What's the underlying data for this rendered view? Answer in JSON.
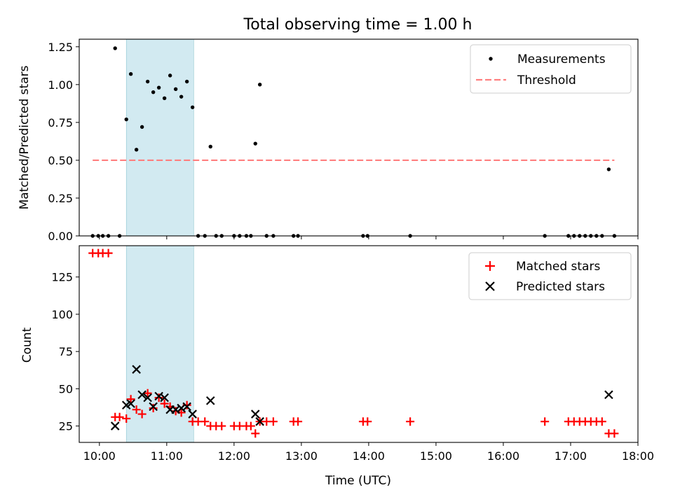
{
  "chart_data": [
    {
      "type": "scatter",
      "title": "Total observing time = 1.00 h",
      "ylabel": "Matched/Predicted stars",
      "xlabel": "",
      "xlim": [
        "09:42",
        "18:00"
      ],
      "ylim": [
        0,
        1.3
      ],
      "yticks": [
        "0.00",
        "0.25",
        "0.50",
        "0.75",
        "1.00",
        "1.25"
      ],
      "highlight_span": [
        "10:24",
        "11:24"
      ],
      "legend_position": "upper right",
      "series": [
        {
          "name": "Measurements",
          "color": "#000000",
          "marker": "dot",
          "points": [
            [
              "09:54",
              0
            ],
            [
              "09:59",
              0
            ],
            [
              "10:03",
              0
            ],
            [
              "10:08",
              0
            ],
            [
              "10:14",
              1.24
            ],
            [
              "10:18",
              0
            ],
            [
              "10:24",
              0.77
            ],
            [
              "10:28",
              1.07
            ],
            [
              "10:33",
              0.57
            ],
            [
              "10:38",
              0.72
            ],
            [
              "10:43",
              1.02
            ],
            [
              "10:48",
              0.95
            ],
            [
              "10:53",
              0.98
            ],
            [
              "10:58",
              0.91
            ],
            [
              "11:03",
              1.06
            ],
            [
              "11:08",
              0.97
            ],
            [
              "11:13",
              0.92
            ],
            [
              "11:18",
              1.02
            ],
            [
              "11:23",
              0.85
            ],
            [
              "11:28",
              0
            ],
            [
              "11:34",
              0
            ],
            [
              "11:39",
              0.59
            ],
            [
              "11:44",
              0
            ],
            [
              "11:49",
              0
            ],
            [
              "12:00",
              0
            ],
            [
              "12:05",
              0
            ],
            [
              "12:11",
              0
            ],
            [
              "12:15",
              0
            ],
            [
              "12:19",
              0.61
            ],
            [
              "12:23",
              1.0
            ],
            [
              "12:29",
              0
            ],
            [
              "12:35",
              0
            ],
            [
              "12:53",
              0
            ],
            [
              "12:57",
              0
            ],
            [
              "13:55",
              0
            ],
            [
              "13:59",
              0
            ],
            [
              "14:37",
              0
            ],
            [
              "16:37",
              0
            ],
            [
              "16:58",
              0
            ],
            [
              "17:03",
              0
            ],
            [
              "17:08",
              0
            ],
            [
              "17:13",
              0
            ],
            [
              "17:18",
              0
            ],
            [
              "17:23",
              0
            ],
            [
              "17:28",
              0
            ],
            [
              "17:34",
              0.44
            ],
            [
              "17:39",
              0
            ]
          ]
        },
        {
          "name": "Threshold",
          "color": "#ff7f7f",
          "line": "dashed",
          "points": [
            [
              "09:54",
              0.5
            ],
            [
              "17:39",
              0.5
            ]
          ]
        }
      ]
    },
    {
      "type": "scatter",
      "title": "",
      "xlabel": "Time (UTC)",
      "ylabel": "Count",
      "xlim": [
        "09:42",
        "18:00"
      ],
      "ylim": [
        14,
        146
      ],
      "xticks": [
        "10:00",
        "11:00",
        "12:00",
        "13:00",
        "14:00",
        "15:00",
        "16:00",
        "17:00",
        "18:00"
      ],
      "yticks": [
        "25",
        "50",
        "75",
        "100",
        "125"
      ],
      "highlight_span": [
        "10:24",
        "11:24"
      ],
      "legend_position": "upper right",
      "series": [
        {
          "name": "Matched stars",
          "color": "#ff0000",
          "marker": "plus",
          "points": [
            [
              "09:54",
              141
            ],
            [
              "09:59",
              141
            ],
            [
              "10:03",
              141
            ],
            [
              "10:08",
              141
            ],
            [
              "10:14",
              31
            ],
            [
              "10:18",
              31
            ],
            [
              "10:24",
              30
            ],
            [
              "10:28",
              43
            ],
            [
              "10:33",
              36
            ],
            [
              "10:38",
              33
            ],
            [
              "10:43",
              47
            ],
            [
              "10:48",
              37
            ],
            [
              "10:53",
              44
            ],
            [
              "10:58",
              40
            ],
            [
              "11:03",
              38
            ],
            [
              "11:08",
              35
            ],
            [
              "11:13",
              34
            ],
            [
              "11:18",
              39
            ],
            [
              "11:23",
              28
            ],
            [
              "11:28",
              28
            ],
            [
              "11:34",
              28
            ],
            [
              "11:39",
              25
            ],
            [
              "11:44",
              25
            ],
            [
              "11:49",
              25
            ],
            [
              "12:00",
              25
            ],
            [
              "12:05",
              25
            ],
            [
              "12:11",
              25
            ],
            [
              "12:15",
              25
            ],
            [
              "12:19",
              20
            ],
            [
              "12:23",
              28
            ],
            [
              "12:29",
              28
            ],
            [
              "12:35",
              28
            ],
            [
              "12:53",
              28
            ],
            [
              "12:57",
              28
            ],
            [
              "13:55",
              28
            ],
            [
              "13:59",
              28
            ],
            [
              "14:37",
              28
            ],
            [
              "16:37",
              28
            ],
            [
              "16:58",
              28
            ],
            [
              "17:03",
              28
            ],
            [
              "17:08",
              28
            ],
            [
              "17:13",
              28
            ],
            [
              "17:18",
              28
            ],
            [
              "17:23",
              28
            ],
            [
              "17:28",
              28
            ],
            [
              "17:34",
              20
            ],
            [
              "17:39",
              20
            ]
          ]
        },
        {
          "name": "Predicted stars",
          "color": "#000000",
          "marker": "x",
          "points": [
            [
              "10:14",
              25
            ],
            [
              "10:24",
              39
            ],
            [
              "10:28",
              40
            ],
            [
              "10:33",
              63
            ],
            [
              "10:38",
              46
            ],
            [
              "10:43",
              44
            ],
            [
              "10:48",
              38
            ],
            [
              "10:53",
              45
            ],
            [
              "10:58",
              44
            ],
            [
              "11:03",
              36
            ],
            [
              "11:08",
              36
            ],
            [
              "11:13",
              37
            ],
            [
              "11:18",
              38
            ],
            [
              "11:23",
              33
            ],
            [
              "11:39",
              42
            ],
            [
              "12:19",
              33
            ],
            [
              "12:23",
              28
            ],
            [
              "17:34",
              46
            ]
          ]
        }
      ]
    }
  ]
}
